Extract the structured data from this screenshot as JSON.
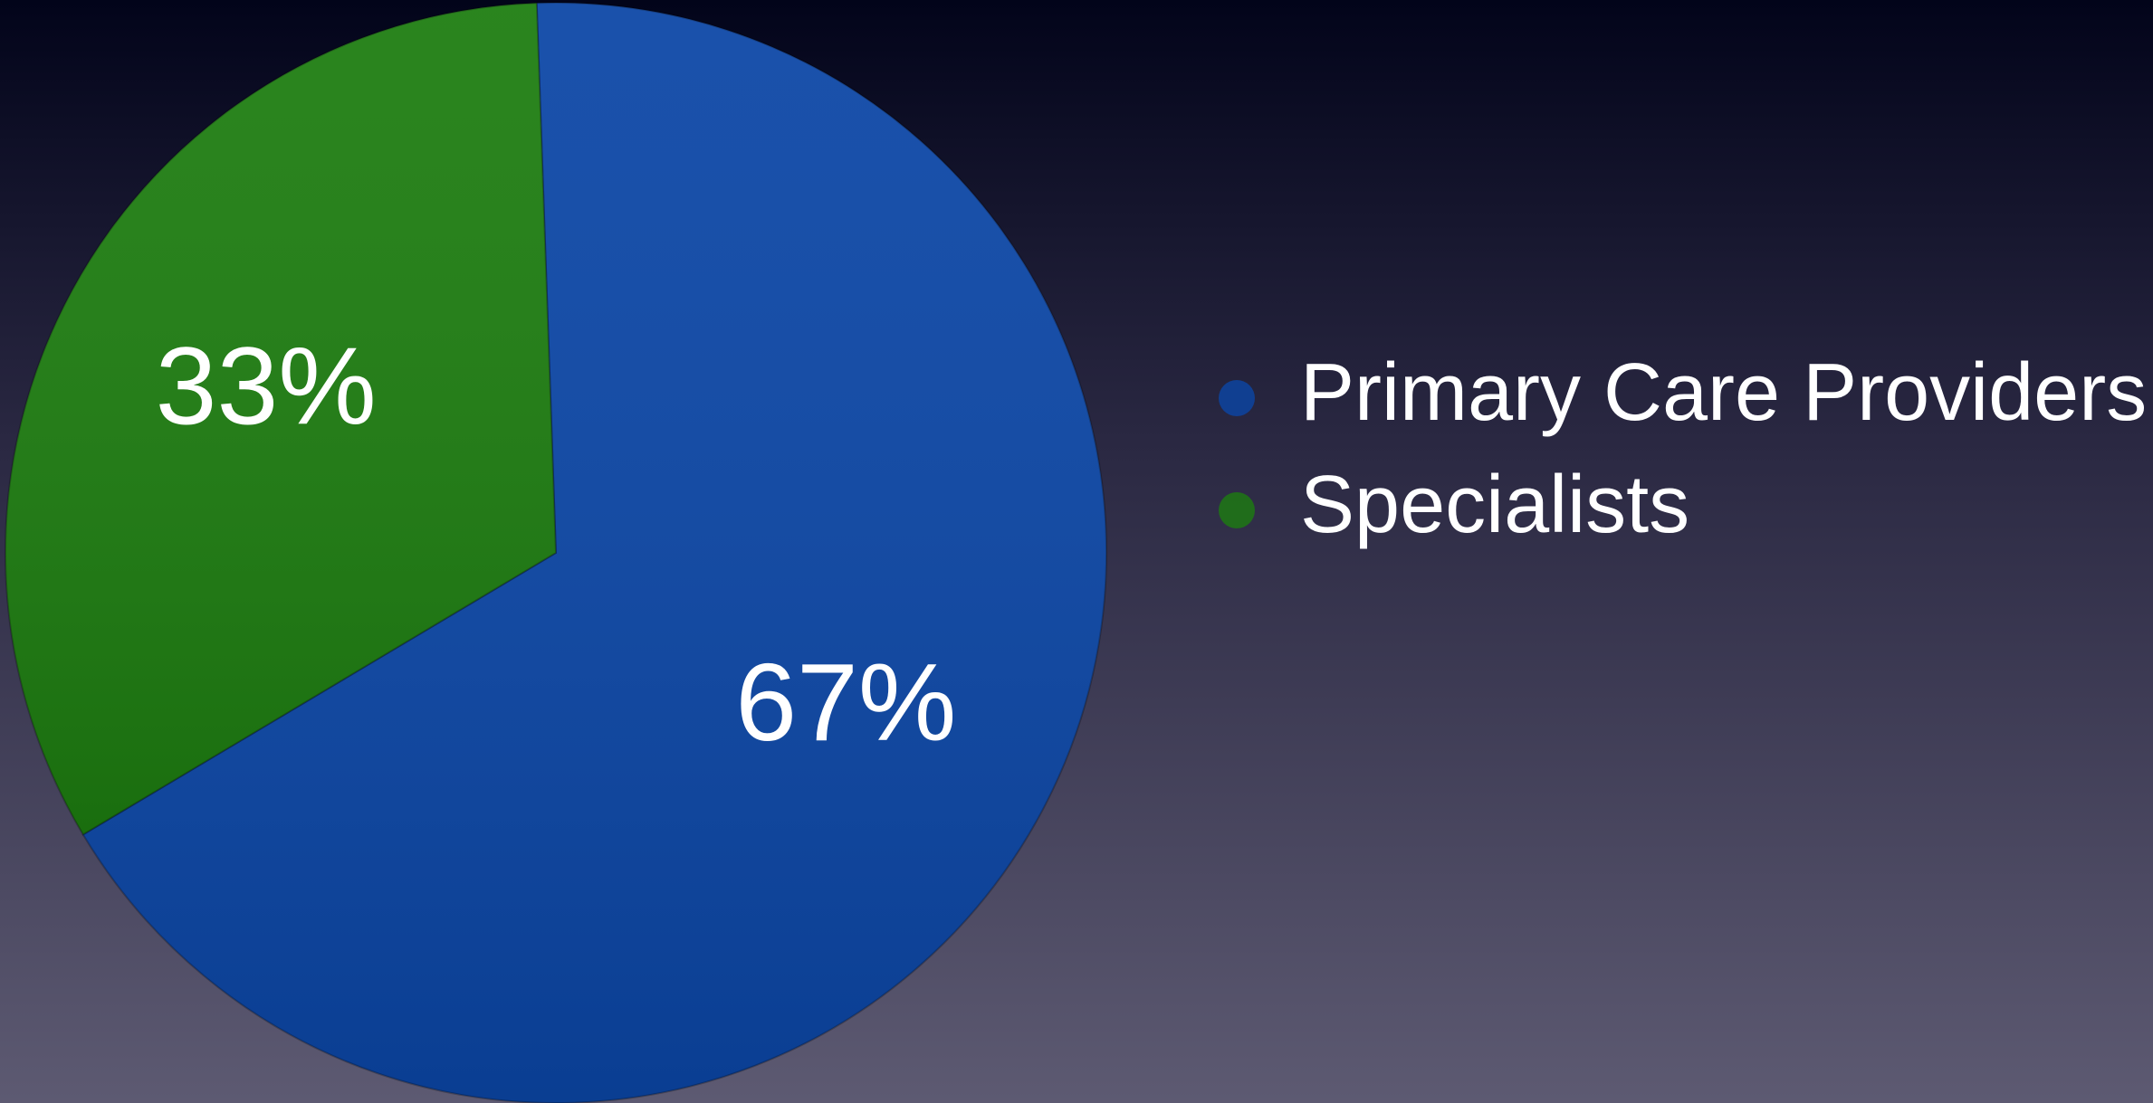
{
  "chart_data": {
    "type": "pie",
    "categories": [
      "Primary Care Providers",
      "Specialists"
    ],
    "values": [
      67,
      33
    ],
    "value_labels": [
      "67%",
      "33%"
    ],
    "colors": [
      "#0b46a6",
      "#1d7d10"
    ],
    "legend": "right"
  }
}
